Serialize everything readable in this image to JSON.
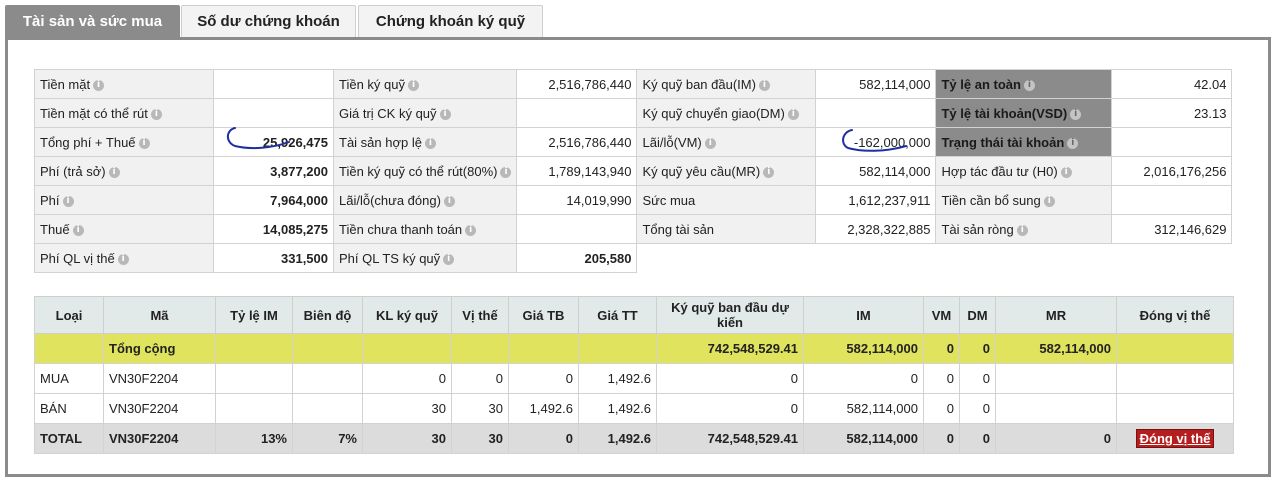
{
  "tabs": [
    {
      "label": "Tài sản và sức mua"
    },
    {
      "label": "Số dư chứng khoán"
    },
    {
      "label": "Chứng khoán ký quỹ"
    }
  ],
  "summary": {
    "rows": [
      [
        {
          "label": "Tiền mặt",
          "value": ""
        },
        {
          "label": "Tiền ký quỹ",
          "value": "2,516,786,440"
        },
        {
          "label": "Ký quỹ ban đầu(IM)",
          "value": "582,114,000"
        },
        {
          "label": "Tỷ lệ an toàn",
          "value": "42.04"
        }
      ],
      [
        {
          "label": "Tiền mặt có thể rút",
          "value": ""
        },
        {
          "label": "Giá trị CK ký quỹ",
          "value": ""
        },
        {
          "label": "Ký quỹ chuyển giao(DM)",
          "value": ""
        },
        {
          "label": "Tỷ lệ tài khoản(VSD)",
          "value": "23.13"
        }
      ],
      [
        {
          "label": "Tổng phí + Thuế",
          "value": "25,926,475"
        },
        {
          "label": "Tài sản hợp lệ",
          "value": "2,516,786,440"
        },
        {
          "label": "Lãi/lỗ(VM)",
          "value": "-162,000,000"
        },
        {
          "label": "Trạng thái tài khoản",
          "value": ""
        }
      ],
      [
        {
          "label": "Phí (trả sở)",
          "value": "3,877,200"
        },
        {
          "label": "Tiền ký quỹ có thể rút(80%)",
          "value": "1,789,143,940"
        },
        {
          "label": "Ký quỹ yêu cầu(MR)",
          "value": "582,114,000"
        },
        {
          "label": "Hợp tác đầu tư (H0)",
          "value": "2,016,176,256"
        }
      ],
      [
        {
          "label": "Phí",
          "value": "7,964,000"
        },
        {
          "label": "Lãi/lỗ(chưa đóng)",
          "value": "14,019,990"
        },
        {
          "label": "Sức mua",
          "value": "1,612,237,911"
        },
        {
          "label": "Tiền cần bổ sung",
          "value": ""
        }
      ],
      [
        {
          "label": "Thuế",
          "value": "14,085,275"
        },
        {
          "label": "Tiền chưa thanh toán",
          "value": ""
        },
        {
          "label": "Tổng tài sản",
          "value": "2,328,322,885"
        },
        {
          "label": "Tài sản ròng",
          "value": "312,146,629"
        }
      ],
      [
        {
          "label": "Phí QL vị thế",
          "value": "331,500"
        },
        {
          "label": "Phí QL TS ký quỹ",
          "value": "205,580"
        }
      ]
    ]
  },
  "positions": {
    "headers": [
      "Loại",
      "Mã",
      "Tỷ lệ IM",
      "Biên độ",
      "KL ký quỹ",
      "Vị thế",
      "Giá TB",
      "Giá TT",
      "Ký quỹ ban đầu dự kiến",
      "IM",
      "VM",
      "DM",
      "MR",
      "Đóng vị thế"
    ],
    "total_row": [
      "",
      "Tổng cộng",
      "",
      "",
      "",
      "",
      "",
      "",
      "742,548,529.41",
      "582,114,000",
      "0",
      "0",
      "582,114,000",
      ""
    ],
    "rows": [
      [
        "MUA",
        "VN30F2204",
        "",
        "",
        "0",
        "0",
        "0",
        "1,492.6",
        "0",
        "0",
        "0",
        "0",
        "",
        ""
      ],
      [
        "BÁN",
        "VN30F2204",
        "",
        "",
        "30",
        "30",
        "1,492.6",
        "1,492.6",
        "0",
        "582,114,000",
        "0",
        "0",
        "",
        ""
      ]
    ],
    "grand_row": [
      "TOTAL",
      "VN30F2204",
      "13%",
      "7%",
      "30",
      "30",
      "0",
      "1,492.6",
      "742,548,529.41",
      "582,114,000",
      "0",
      "0",
      "0",
      "Đóng vị thế"
    ]
  },
  "colors": {
    "accent_gray": "#8b8b8b",
    "total_highlight": "#dfe35d",
    "close_button": "#b51e1e",
    "annotation_ink": "#1e2fa0"
  }
}
